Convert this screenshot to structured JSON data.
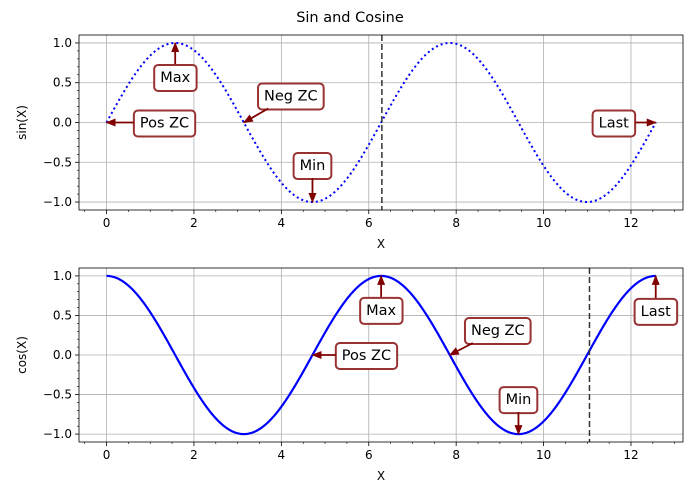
{
  "chart_data": [
    {
      "type": "line",
      "title": "Sin and Cosine",
      "xlabel": "X",
      "ylabel": "sin(X)",
      "xlim": [
        -0.63,
        13.19
      ],
      "ylim": [
        -1.1,
        1.1
      ],
      "xticks": [
        0,
        2,
        4,
        6,
        8,
        10,
        12
      ],
      "yticks": [
        -1.0,
        -0.5,
        0.0,
        0.5,
        1.0
      ],
      "ytick_labels": [
        "−1.0",
        "−0.5",
        "0.0",
        "0.5",
        "1.0"
      ],
      "grid": true,
      "series": [
        {
          "function": "sin",
          "x_range": [
            0,
            12.566
          ],
          "line_style": "dotted",
          "color": "#0000ff"
        }
      ],
      "vline": {
        "x": 6.3,
        "line_style": "dashed",
        "color": "#333333"
      },
      "annotations": [
        {
          "text": "Max",
          "point": [
            1.571,
            1.0
          ],
          "direction": "down"
        },
        {
          "text": "Pos ZC",
          "point": [
            0.0,
            0.0
          ],
          "direction": "right"
        },
        {
          "text": "Neg ZC",
          "point": [
            3.142,
            0.0
          ],
          "direction": "up-right"
        },
        {
          "text": "Min",
          "point": [
            4.712,
            -1.0
          ],
          "direction": "up"
        },
        {
          "text": "Last",
          "point": [
            12.566,
            0.0
          ],
          "direction": "left"
        }
      ]
    },
    {
      "type": "line",
      "xlabel": "X",
      "ylabel": "cos(X)",
      "xlim": [
        -0.63,
        13.19
      ],
      "ylim": [
        -1.1,
        1.1
      ],
      "xticks": [
        0,
        2,
        4,
        6,
        8,
        10,
        12
      ],
      "yticks": [
        -1.0,
        -0.5,
        0.0,
        0.5,
        1.0
      ],
      "ytick_labels": [
        "−1.0",
        "−0.5",
        "0.0",
        "0.5",
        "1.0"
      ],
      "grid": true,
      "series": [
        {
          "function": "cos",
          "x_range": [
            0,
            12.566
          ],
          "line_style": "solid",
          "color": "#0000ff"
        }
      ],
      "vline": {
        "x": 11.05,
        "line_style": "dashed",
        "color": "#333333"
      },
      "annotations": [
        {
          "text": "Max",
          "point": [
            6.283,
            1.0
          ],
          "direction": "down"
        },
        {
          "text": "Pos ZC",
          "point": [
            4.712,
            0.0
          ],
          "direction": "right"
        },
        {
          "text": "Neg ZC",
          "point": [
            7.854,
            0.0
          ],
          "direction": "up-right"
        },
        {
          "text": "Min",
          "point": [
            9.425,
            -1.0
          ],
          "direction": "up"
        },
        {
          "text": "Last",
          "point": [
            12.566,
            1.0
          ],
          "direction": "down"
        }
      ]
    }
  ],
  "colors": {
    "annotation_box_edge": "#993333",
    "annotation_arrow": "#800000",
    "grid": "#b0b0b0"
  }
}
